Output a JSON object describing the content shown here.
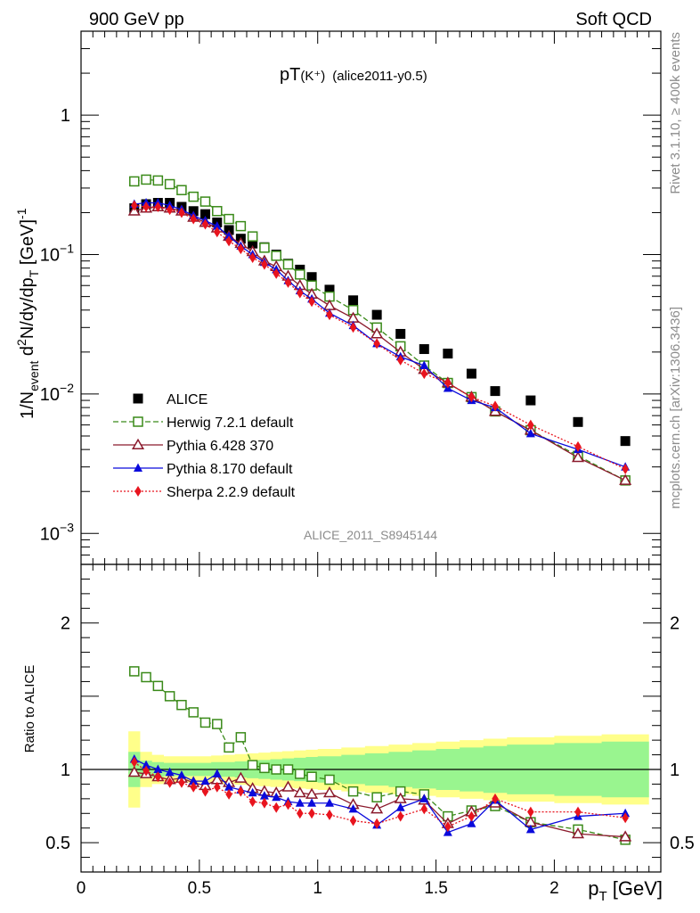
{
  "header": {
    "left": "900 GeV pp",
    "right": "Soft QCD"
  },
  "side": {
    "top": "Rivet 3.1.10, ≥ 400k events",
    "bottom": "mcplots.cern.ch [arXiv:1306.3436]"
  },
  "chart_data": [
    {
      "type": "scatter",
      "title": "pT(K⁺) (alice2011-y0.5)",
      "title_main": "pT",
      "title_sub": "(K⁺)",
      "title_tag": "(alice2011-y0.5)",
      "analysis": "ALICE_2011_S8945144",
      "ylabel": "1/N_event d²N/dy/dp_T [GeV]⁻¹",
      "ylabel_parts": {
        "a": "1/N",
        "b": "event",
        "c": " d",
        "d": "2",
        "e": "N/dy/dp",
        "f": "T",
        "g": " [GeV]",
        "h": "-1"
      },
      "yscale": "log",
      "ylim": [
        0.0006,
        4
      ],
      "xlim": [
        0,
        2.45
      ],
      "ytick_labels": [
        {
          "v": 0.001,
          "base": "10",
          "exp": "−3"
        },
        {
          "v": 0.01,
          "base": "10",
          "exp": "−2"
        },
        {
          "v": 0.1,
          "base": "10",
          "exp": "−1"
        },
        {
          "v": 1,
          "base": "1",
          "exp": ""
        }
      ],
      "legend_position": "bottom-left",
      "x": [
        0.225,
        0.275,
        0.325,
        0.375,
        0.425,
        0.475,
        0.525,
        0.575,
        0.625,
        0.675,
        0.725,
        0.775,
        0.825,
        0.875,
        0.925,
        0.975,
        1.05,
        1.15,
        1.25,
        1.35,
        1.45,
        1.55,
        1.65,
        1.75,
        1.9,
        2.1,
        2.3
      ],
      "series": [
        {
          "name": "ALICE",
          "color": "#000000",
          "marker": "square-filled",
          "line": "none",
          "values": [
            0.215,
            0.23,
            0.235,
            0.235,
            0.22,
            0.205,
            0.195,
            0.17,
            0.15,
            0.13,
            0.12,
            0.113,
            0.1,
            0.086,
            0.078,
            0.069,
            0.056,
            0.047,
            0.037,
            0.027,
            0.021,
            0.0195,
            0.014,
            0.0105,
            0.009,
            0.0063,
            0.0046
          ]
        },
        {
          "name": "Herwig 7.2.1 default",
          "color": "#3a8a19",
          "marker": "square-open",
          "line": "dashed",
          "values": [
            0.335,
            0.345,
            0.34,
            0.32,
            0.29,
            0.26,
            0.24,
            0.205,
            0.18,
            0.16,
            0.135,
            0.112,
            0.098,
            0.085,
            0.072,
            0.06,
            0.05,
            0.04,
            0.03,
            0.022,
            0.016,
            0.012,
            0.0095,
            0.0075,
            0.0055,
            0.0036,
            0.0024
          ]
        },
        {
          "name": "Pythia 6.428 370",
          "color": "#8b1a2c",
          "marker": "triangle-open",
          "line": "solid",
          "values": [
            0.205,
            0.215,
            0.22,
            0.215,
            0.205,
            0.185,
            0.17,
            0.155,
            0.135,
            0.12,
            0.105,
            0.09,
            0.082,
            0.07,
            0.06,
            0.052,
            0.043,
            0.035,
            0.027,
            0.02,
            0.015,
            0.012,
            0.0095,
            0.0075,
            0.0055,
            0.0035,
            0.0024
          ]
        },
        {
          "name": "Pythia 8.170 default",
          "color": "#0a0adc",
          "marker": "triangle-filled",
          "line": "solid",
          "values": [
            0.23,
            0.235,
            0.235,
            0.225,
            0.21,
            0.19,
            0.175,
            0.16,
            0.135,
            0.115,
            0.1,
            0.088,
            0.078,
            0.065,
            0.055,
            0.048,
            0.038,
            0.031,
            0.023,
            0.0185,
            0.016,
            0.011,
            0.009,
            0.008,
            0.0052,
            0.004,
            0.003
          ]
        },
        {
          "name": "Sherpa 2.2.9 default",
          "color": "#e8141e",
          "marker": "diamond-filled",
          "line": "dotted",
          "values": [
            0.225,
            0.22,
            0.22,
            0.21,
            0.2,
            0.18,
            0.165,
            0.145,
            0.125,
            0.11,
            0.095,
            0.085,
            0.073,
            0.063,
            0.053,
            0.046,
            0.037,
            0.03,
            0.023,
            0.0175,
            0.014,
            0.012,
            0.0095,
            0.0082,
            0.006,
            0.0042,
            0.0029
          ]
        }
      ]
    },
    {
      "type": "scatter",
      "ylabel": "Ratio to ALICE",
      "xlabel": "p_T [GeV]",
      "xlabel_parts": {
        "a": "p",
        "b": "T",
        "c": " [GeV]"
      },
      "ylim": [
        0.3,
        2.4
      ],
      "xlim": [
        0,
        2.45
      ],
      "yticks": [
        0.5,
        1,
        2
      ],
      "ytick_labels": [
        "0.5",
        "1",
        "2"
      ],
      "xticks": [
        0,
        0.5,
        1,
        1.5,
        2
      ],
      "xtick_labels": [
        "0",
        "0.5",
        "1",
        "1.5",
        "2"
      ],
      "reference_line": 1,
      "band_x": [
        0.2,
        0.25,
        0.3,
        0.35,
        0.4,
        0.45,
        0.5,
        0.55,
        0.6,
        0.65,
        0.7,
        0.75,
        0.8,
        0.85,
        0.9,
        0.95,
        1.0,
        1.1,
        1.2,
        1.3,
        1.4,
        1.5,
        1.6,
        1.7,
        1.8,
        2.0,
        2.2,
        2.4
      ],
      "band_outer": [
        0.26,
        0.12,
        0.1,
        0.09,
        0.09,
        0.09,
        0.09,
        0.095,
        0.1,
        0.105,
        0.11,
        0.115,
        0.12,
        0.125,
        0.13,
        0.135,
        0.14,
        0.15,
        0.16,
        0.17,
        0.18,
        0.19,
        0.2,
        0.21,
        0.22,
        0.23,
        0.24,
        0.24
      ],
      "band_inner": [
        0.12,
        0.06,
        0.05,
        0.045,
        0.045,
        0.045,
        0.045,
        0.05,
        0.05,
        0.055,
        0.06,
        0.065,
        0.07,
        0.075,
        0.08,
        0.085,
        0.09,
        0.1,
        0.11,
        0.12,
        0.13,
        0.14,
        0.15,
        0.16,
        0.17,
        0.18,
        0.19,
        0.19
      ],
      "band_colors": {
        "outer": "#ffff8a",
        "inner": "#99f58f"
      },
      "x": [
        0.225,
        0.275,
        0.325,
        0.375,
        0.425,
        0.475,
        0.525,
        0.575,
        0.625,
        0.675,
        0.725,
        0.775,
        0.825,
        0.875,
        0.925,
        0.975,
        1.05,
        1.15,
        1.25,
        1.35,
        1.45,
        1.55,
        1.65,
        1.75,
        1.9,
        2.1,
        2.3
      ],
      "series": [
        {
          "name": "Herwig 7.2.1 default",
          "color": "#3a8a19",
          "marker": "square-open",
          "line": "dashed",
          "values": [
            1.67,
            1.63,
            1.57,
            1.5,
            1.44,
            1.39,
            1.32,
            1.31,
            1.15,
            1.22,
            1.03,
            1.01,
            1.0,
            1.0,
            0.97,
            0.95,
            0.93,
            0.85,
            0.81,
            0.85,
            0.83,
            0.68,
            0.72,
            0.75,
            0.64,
            0.59,
            0.52
          ]
        },
        {
          "name": "Pythia 6.428 370",
          "color": "#8b1a2c",
          "marker": "triangle-open",
          "line": "solid",
          "values": [
            0.98,
            0.97,
            0.95,
            0.93,
            0.94,
            0.91,
            0.89,
            0.93,
            0.91,
            0.94,
            0.87,
            0.85,
            0.84,
            0.88,
            0.84,
            0.83,
            0.84,
            0.76,
            0.73,
            0.8,
            0.79,
            0.63,
            0.71,
            0.77,
            0.64,
            0.56,
            0.54
          ]
        },
        {
          "name": "Pythia 8.170 default",
          "color": "#0a0adc",
          "marker": "triangle-filled",
          "line": "solid",
          "values": [
            1.07,
            1.03,
            1.0,
            0.98,
            0.96,
            0.92,
            0.92,
            0.97,
            0.88,
            0.86,
            0.84,
            0.82,
            0.81,
            0.78,
            0.77,
            0.77,
            0.77,
            0.73,
            0.62,
            0.74,
            0.8,
            0.57,
            0.63,
            0.79,
            0.59,
            0.68,
            0.7
          ]
        },
        {
          "name": "Sherpa 2.2.9 default",
          "color": "#e8141e",
          "marker": "diamond-filled",
          "line": "dotted",
          "values": [
            1.05,
            0.99,
            0.95,
            0.91,
            0.91,
            0.88,
            0.85,
            0.88,
            0.83,
            0.85,
            0.78,
            0.77,
            0.74,
            0.76,
            0.7,
            0.7,
            0.69,
            0.65,
            0.63,
            0.68,
            0.73,
            0.61,
            0.68,
            0.8,
            0.71,
            0.71,
            0.67
          ]
        }
      ]
    }
  ]
}
